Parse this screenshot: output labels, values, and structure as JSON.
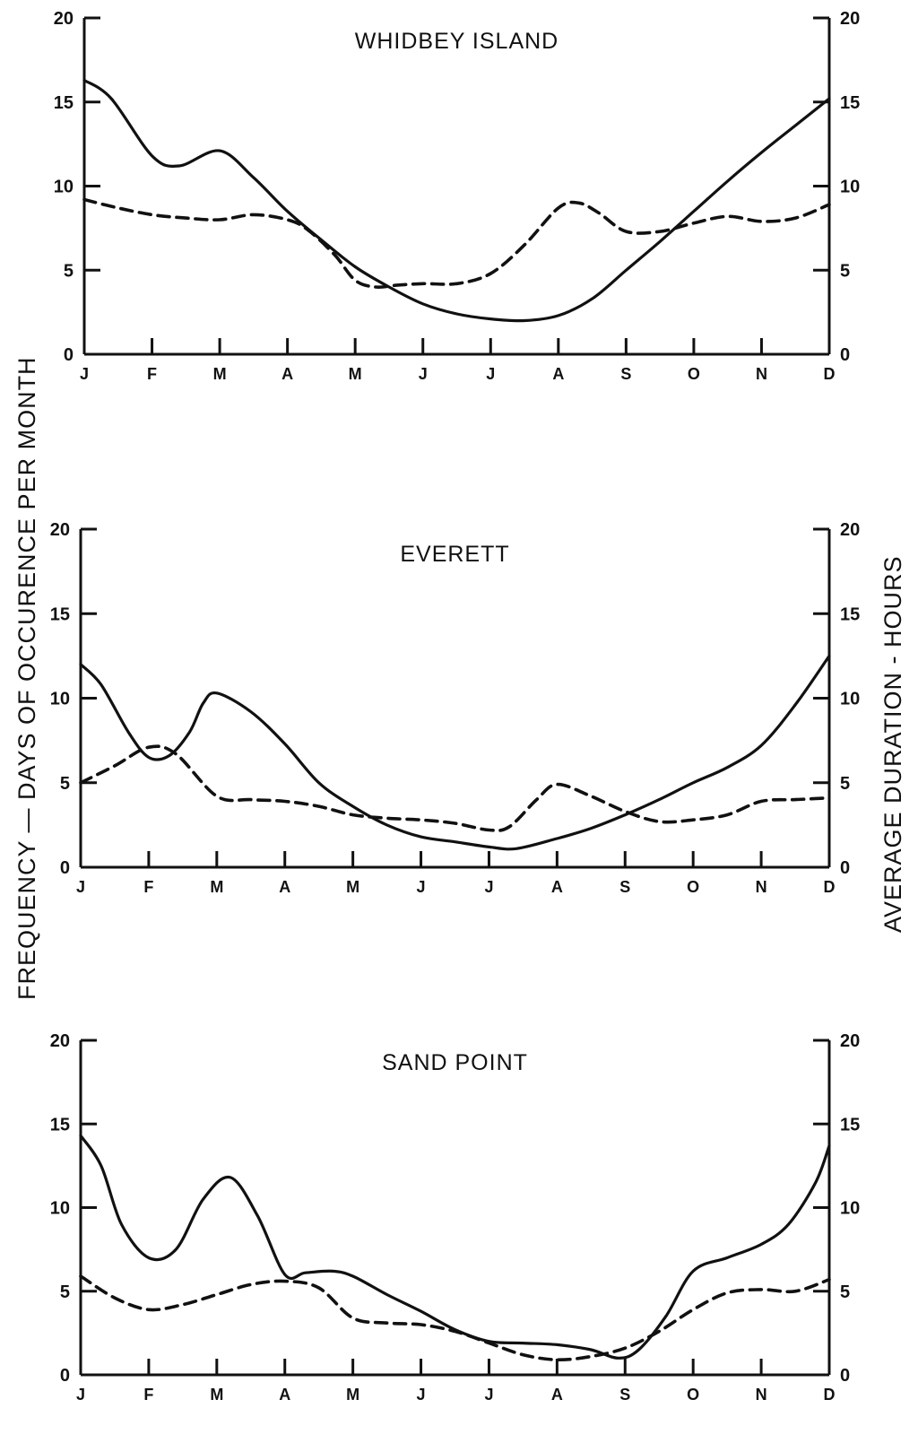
{
  "figure": {
    "left_axis_label": "FREQUENCY — DAYS OF OCCURENCE PER MONTH",
    "right_axis_label": "AVERAGE DURATION - HOURS"
  },
  "chart_data": [
    {
      "type": "line",
      "title": "WHIDBEY ISLAND",
      "categories": [
        "J",
        "F",
        "M",
        "A",
        "M",
        "J",
        "J",
        "A",
        "S",
        "O",
        "N",
        "D"
      ],
      "yticks": [
        0,
        5,
        10,
        15,
        20
      ],
      "ylim": [
        0,
        20
      ],
      "grid": false,
      "series": [
        {
          "style": "solid",
          "x": [
            0,
            0.4,
            1,
            1.4,
            2,
            2.5,
            3,
            3.5,
            4,
            4.5,
            5,
            5.5,
            6,
            6.5,
            7,
            7.5,
            8,
            8.5,
            9,
            9.5,
            10,
            10.5,
            11
          ],
          "values": [
            16.3,
            15.2,
            11.8,
            11.2,
            12.1,
            10.5,
            8.5,
            6.8,
            5.2,
            4,
            3,
            2.4,
            2.1,
            2,
            2.3,
            3.3,
            5,
            6.7,
            8.5,
            10.3,
            12,
            13.6,
            15.2
          ]
        },
        {
          "style": "dashed",
          "x": [
            0,
            0.5,
            1,
            1.5,
            2,
            2.5,
            3,
            3.3,
            3.7,
            4,
            4.3,
            4.6,
            5,
            5.5,
            6,
            6.5,
            7,
            7.3,
            7.6,
            8,
            8.5,
            9,
            9.5,
            10,
            10.5,
            11
          ],
          "values": [
            9.2,
            8.7,
            8.3,
            8.1,
            8,
            8.3,
            8,
            7.4,
            5.9,
            4.4,
            4,
            4.1,
            4.2,
            4.2,
            4.8,
            6.5,
            8.7,
            9,
            8.4,
            7.3,
            7.3,
            7.8,
            8.2,
            7.9,
            8.1,
            8.9
          ]
        }
      ]
    },
    {
      "type": "line",
      "title": "EVERETT",
      "categories": [
        "J",
        "F",
        "M",
        "A",
        "M",
        "J",
        "J",
        "A",
        "S",
        "O",
        "N",
        "D"
      ],
      "yticks": [
        0,
        5,
        10,
        15,
        20
      ],
      "ylim": [
        0,
        20
      ],
      "grid": false,
      "series": [
        {
          "style": "solid",
          "x": [
            0,
            0.3,
            0.7,
            1,
            1.3,
            1.6,
            1.8,
            2,
            2.5,
            3,
            3.5,
            4,
            4.5,
            5,
            5.5,
            6,
            6.4,
            7,
            7.5,
            8,
            8.5,
            9,
            9.5,
            10,
            10.5,
            11
          ],
          "values": [
            12,
            10.8,
            8,
            6.5,
            6.6,
            8,
            9.7,
            10.3,
            9.2,
            7.3,
            5,
            3.6,
            2.5,
            1.8,
            1.5,
            1.2,
            1.1,
            1.7,
            2.3,
            3.1,
            4,
            5,
            5.9,
            7.2,
            9.6,
            12.5
          ]
        },
        {
          "style": "dashed",
          "x": [
            0,
            0.5,
            1,
            1.4,
            2,
            2.5,
            3,
            3.5,
            4,
            4.5,
            5,
            5.5,
            6,
            6.3,
            6.7,
            7,
            7.5,
            8,
            8.5,
            9,
            9.5,
            10,
            10.5,
            11
          ],
          "values": [
            5,
            6,
            7.1,
            6.7,
            4.2,
            4,
            3.9,
            3.6,
            3.1,
            2.9,
            2.8,
            2.6,
            2.2,
            2.4,
            4,
            4.9,
            4.2,
            3.3,
            2.7,
            2.8,
            3.1,
            3.9,
            4,
            4.1
          ]
        }
      ]
    },
    {
      "type": "line",
      "title": "SAND POINT",
      "categories": [
        "J",
        "F",
        "M",
        "A",
        "M",
        "J",
        "J",
        "A",
        "S",
        "O",
        "N",
        "D"
      ],
      "yticks": [
        0,
        5,
        10,
        15,
        20
      ],
      "ylim": [
        0,
        20
      ],
      "grid": false,
      "series": [
        {
          "style": "solid",
          "x": [
            0,
            0.3,
            0.6,
            1,
            1.4,
            1.8,
            2.2,
            2.6,
            3,
            3.3,
            3.7,
            4,
            4.5,
            5,
            5.5,
            6,
            6.5,
            7,
            7.5,
            7.9,
            8.2,
            8.6,
            9,
            9.5,
            10,
            10.4,
            10.8,
            11
          ],
          "values": [
            14.3,
            12.5,
            9,
            7,
            7.5,
            10.5,
            11.8,
            9.5,
            6,
            6.1,
            6.2,
            5.9,
            4.8,
            3.8,
            2.7,
            2,
            1.9,
            1.8,
            1.5,
            1,
            1.5,
            3.5,
            6.2,
            7,
            7.8,
            9,
            11.5,
            13.7
          ]
        },
        {
          "style": "dashed",
          "x": [
            0,
            0.5,
            1,
            1.5,
            2,
            2.5,
            3,
            3.5,
            4,
            4.5,
            5,
            5.5,
            6,
            6.5,
            7,
            7.5,
            8,
            8.5,
            9,
            9.5,
            10,
            10.5,
            11
          ],
          "values": [
            5.9,
            4.6,
            3.9,
            4.2,
            4.8,
            5.4,
            5.6,
            5.2,
            3.4,
            3.1,
            3,
            2.6,
            1.9,
            1.2,
            0.9,
            1.1,
            1.6,
            2.6,
            3.9,
            4.9,
            5.1,
            5,
            5.7
          ]
        }
      ]
    }
  ]
}
